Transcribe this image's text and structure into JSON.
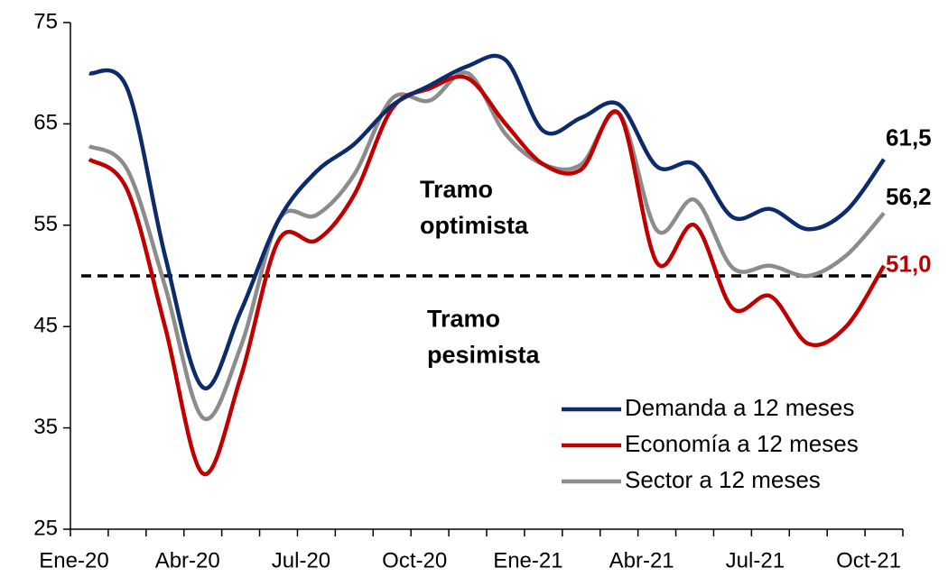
{
  "chart_data": {
    "type": "line",
    "categories": [
      "Ene-20",
      null,
      null,
      "Abr-20",
      null,
      null,
      "Jul-20",
      null,
      null,
      "Oct-20",
      null,
      null,
      "Ene-21",
      null,
      null,
      "Abr-21",
      null,
      null,
      "Jul-21",
      null,
      null,
      "Oct-21"
    ],
    "series": [
      {
        "name": "Demanda a 12 meses",
        "color": "#0d2a6b",
        "values": [
          70.0,
          68.5,
          52.0,
          39.0,
          46.5,
          55.5,
          60.3,
          63.0,
          66.8,
          68.8,
          70.7,
          71.3,
          64.3,
          65.6,
          66.9,
          60.8,
          61.0,
          55.8,
          56.6,
          54.6,
          56.4,
          61.5
        ],
        "value_labels": [
          null,
          null,
          null,
          null,
          null,
          null,
          null,
          null,
          null,
          null,
          null,
          null,
          null,
          null,
          null,
          null,
          null,
          null,
          null,
          null,
          null,
          "61,5"
        ],
        "label_color": "#000000"
      },
      {
        "name": "Economía a 12 meses",
        "color": "#c00000",
        "values": [
          61.5,
          58.5,
          45.0,
          30.5,
          40.0,
          53.5,
          53.5,
          58.0,
          66.5,
          68.5,
          69.5,
          65.0,
          61.0,
          60.5,
          66.0,
          51.3,
          55.0,
          46.8,
          48.0,
          43.3,
          45.0,
          51.0
        ],
        "value_labels": [
          null,
          null,
          null,
          null,
          null,
          null,
          null,
          null,
          null,
          null,
          null,
          null,
          null,
          null,
          null,
          null,
          null,
          null,
          null,
          null,
          null,
          "51,0"
        ],
        "label_color": "#c00000"
      },
      {
        "name": "Sector a 12 meses",
        "color": "#8c8c8c",
        "values": [
          62.8,
          60.5,
          49.0,
          36.0,
          43.0,
          55.5,
          56.0,
          60.0,
          67.5,
          67.3,
          70.0,
          64.0,
          61.0,
          61.0,
          66.0,
          54.5,
          57.5,
          50.8,
          51.0,
          50.0,
          52.0,
          56.2
        ],
        "value_labels": [
          null,
          null,
          null,
          null,
          null,
          null,
          null,
          null,
          null,
          null,
          null,
          null,
          null,
          null,
          null,
          null,
          null,
          null,
          null,
          null,
          null,
          "56,2"
        ],
        "label_color": "#000000"
      }
    ],
    "ylim": [
      25,
      75
    ],
    "yticks": [
      25,
      35,
      45,
      55,
      65,
      75
    ],
    "reference_line": {
      "value": 50,
      "color": "#000000",
      "style": "dashed"
    },
    "annotations": [
      {
        "lines": [
          "Tramo",
          "optimista"
        ],
        "value": 55
      },
      {
        "lines": [
          "Tramo",
          "pesimista"
        ],
        "value": 45
      }
    ],
    "legend": "lower right",
    "grid": false
  }
}
